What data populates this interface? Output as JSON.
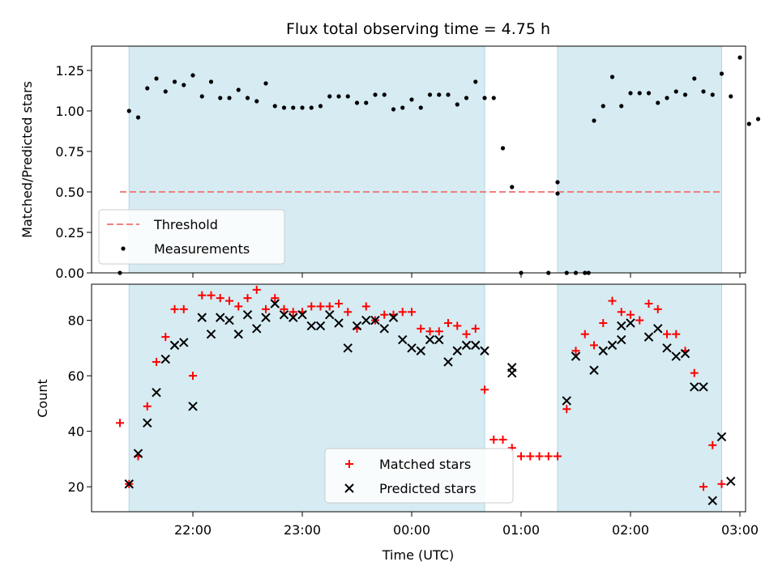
{
  "chart_data": {
    "type": "scatter",
    "title": "Flux total observing time = 4.75 h",
    "colors": {
      "span": "#add8e6",
      "threshold": "#f08080",
      "measurements": "#000000",
      "matched": "#ff0000",
      "predicted": "#000000"
    },
    "shaded_intervals": [
      [
        "21:25",
        "00:40"
      ],
      [
        "01:20",
        "02:50"
      ]
    ],
    "x_ticks": [
      "22:00",
      "23:00",
      "00:00",
      "01:00",
      "02:00",
      "03:00"
    ],
    "xlabel": "Time (UTC)",
    "top": {
      "ylabel": "Matched/Predicted stars",
      "ylim": [
        0,
        1.4
      ],
      "y_ticks": [
        "0.00",
        "0.25",
        "0.50",
        "0.75",
        "1.00",
        "1.25"
      ],
      "threshold": {
        "name": "Threshold",
        "y": 0.5,
        "x_range": [
          "21:20",
          "02:50"
        ]
      },
      "legend": {
        "placement": "lower-left",
        "entries": [
          "Threshold",
          "Measurements"
        ]
      },
      "series": [
        {
          "name": "Measurements",
          "marker": "dot",
          "points": [
            [
              "21:20",
              0.0
            ],
            [
              "21:25",
              1.0
            ],
            [
              "21:30",
              0.96
            ],
            [
              "21:35",
              1.14
            ],
            [
              "21:40",
              1.2
            ],
            [
              "21:45",
              1.12
            ],
            [
              "21:50",
              1.18
            ],
            [
              "21:55",
              1.16
            ],
            [
              "22:00",
              1.22
            ],
            [
              "22:05",
              1.09
            ],
            [
              "22:10",
              1.18
            ],
            [
              "22:15",
              1.08
            ],
            [
              "22:20",
              1.08
            ],
            [
              "22:25",
              1.13
            ],
            [
              "22:30",
              1.08
            ],
            [
              "22:35",
              1.06
            ],
            [
              "22:40",
              1.17
            ],
            [
              "22:45",
              1.03
            ],
            [
              "22:50",
              1.02
            ],
            [
              "22:55",
              1.02
            ],
            [
              "23:00",
              1.02
            ],
            [
              "23:05",
              1.02
            ],
            [
              "23:10",
              1.03
            ],
            [
              "23:15",
              1.09
            ],
            [
              "23:20",
              1.09
            ],
            [
              "23:25",
              1.09
            ],
            [
              "23:30",
              1.05
            ],
            [
              "23:35",
              1.05
            ],
            [
              "23:40",
              1.1
            ],
            [
              "23:45",
              1.1
            ],
            [
              "23:50",
              1.01
            ],
            [
              "23:55",
              1.02
            ],
            [
              "00:00",
              1.07
            ],
            [
              "00:05",
              1.02
            ],
            [
              "00:10",
              1.1
            ],
            [
              "00:15",
              1.1
            ],
            [
              "00:20",
              1.1
            ],
            [
              "00:25",
              1.04
            ],
            [
              "00:30",
              1.08
            ],
            [
              "00:35",
              1.18
            ],
            [
              "00:40",
              1.08
            ],
            [
              "00:45",
              1.08
            ],
            [
              "00:50",
              0.77
            ],
            [
              "00:55",
              0.53
            ],
            [
              "01:00",
              0.0
            ],
            [
              "01:15",
              0.0
            ],
            [
              "01:20",
              0.56
            ],
            [
              "01:20",
              0.49
            ],
            [
              "01:25",
              0.0
            ],
            [
              "01:30",
              0.0
            ],
            [
              "01:35",
              0.0
            ],
            [
              "01:37",
              0.0
            ],
            [
              "01:40",
              0.94
            ],
            [
              "01:45",
              1.03
            ],
            [
              "01:50",
              1.21
            ],
            [
              "01:55",
              1.03
            ],
            [
              "02:00",
              1.11
            ],
            [
              "02:05",
              1.11
            ],
            [
              "02:10",
              1.11
            ],
            [
              "02:15",
              1.05
            ],
            [
              "02:20",
              1.08
            ],
            [
              "02:25",
              1.12
            ],
            [
              "02:30",
              1.1
            ],
            [
              "02:35",
              1.2
            ],
            [
              "02:40",
              1.12
            ],
            [
              "02:45",
              1.1
            ],
            [
              "02:50",
              1.23
            ],
            [
              "02:55",
              1.09
            ],
            [
              "03:00",
              1.33
            ],
            [
              "03:05",
              0.92
            ],
            [
              "03:10",
              0.95
            ]
          ]
        }
      ]
    },
    "bottom": {
      "ylabel": "Count",
      "ylim": [
        11,
        93
      ],
      "y_ticks": [
        "20",
        "40",
        "60",
        "80"
      ],
      "legend": {
        "placement": "lower-center",
        "entries": [
          "Matched stars",
          "Predicted stars"
        ]
      },
      "series": [
        {
          "name": "Matched stars",
          "marker": "plus",
          "points": [
            [
              "21:20",
              43
            ],
            [
              "21:25",
              21
            ],
            [
              "21:30",
              31
            ],
            [
              "21:35",
              49
            ],
            [
              "21:40",
              65
            ],
            [
              "21:45",
              74
            ],
            [
              "21:50",
              84
            ],
            [
              "21:55",
              84
            ],
            [
              "22:00",
              60
            ],
            [
              "22:05",
              89
            ],
            [
              "22:10",
              89
            ],
            [
              "22:15",
              88
            ],
            [
              "22:20",
              87
            ],
            [
              "22:25",
              85
            ],
            [
              "22:30",
              88
            ],
            [
              "22:35",
              91
            ],
            [
              "22:40",
              84
            ],
            [
              "22:45",
              88
            ],
            [
              "22:50",
              84
            ],
            [
              "22:55",
              83
            ],
            [
              "23:00",
              83
            ],
            [
              "23:05",
              85
            ],
            [
              "23:10",
              85
            ],
            [
              "23:15",
              85
            ],
            [
              "23:20",
              86
            ],
            [
              "23:25",
              83
            ],
            [
              "23:30",
              77
            ],
            [
              "23:35",
              85
            ],
            [
              "23:40",
              80
            ],
            [
              "23:45",
              82
            ],
            [
              "23:50",
              82
            ],
            [
              "23:55",
              83
            ],
            [
              "00:00",
              83
            ],
            [
              "00:05",
              77
            ],
            [
              "00:10",
              76
            ],
            [
              "00:15",
              76
            ],
            [
              "00:20",
              79
            ],
            [
              "00:25",
              78
            ],
            [
              "00:30",
              75
            ],
            [
              "00:35",
              77
            ],
            [
              "00:40",
              55
            ],
            [
              "00:45",
              37
            ],
            [
              "00:50",
              37
            ],
            [
              "00:55",
              34
            ],
            [
              "01:00",
              31
            ],
            [
              "01:05",
              31
            ],
            [
              "01:10",
              31
            ],
            [
              "01:15",
              31
            ],
            [
              "01:20",
              31
            ],
            [
              "01:25",
              48
            ],
            [
              "01:30",
              69
            ],
            [
              "01:35",
              75
            ],
            [
              "01:40",
              71
            ],
            [
              "01:45",
              79
            ],
            [
              "01:50",
              87
            ],
            [
              "01:55",
              83
            ],
            [
              "02:00",
              82
            ],
            [
              "02:05",
              80
            ],
            [
              "02:10",
              86
            ],
            [
              "02:15",
              84
            ],
            [
              "02:20",
              75
            ],
            [
              "02:25",
              75
            ],
            [
              "02:30",
              69
            ],
            [
              "02:35",
              61
            ],
            [
              "02:40",
              20
            ],
            [
              "02:45",
              35
            ],
            [
              "02:50",
              21
            ]
          ]
        },
        {
          "name": "Predicted stars",
          "marker": "x",
          "points": [
            [
              "21:25",
              21
            ],
            [
              "21:30",
              32
            ],
            [
              "21:35",
              43
            ],
            [
              "21:40",
              54
            ],
            [
              "21:45",
              66
            ],
            [
              "21:50",
              71
            ],
            [
              "21:55",
              72
            ],
            [
              "22:00",
              49
            ],
            [
              "22:05",
              81
            ],
            [
              "22:10",
              75
            ],
            [
              "22:15",
              81
            ],
            [
              "22:20",
              80
            ],
            [
              "22:25",
              75
            ],
            [
              "22:30",
              82
            ],
            [
              "22:35",
              77
            ],
            [
              "22:40",
              81
            ],
            [
              "22:45",
              86
            ],
            [
              "22:50",
              82
            ],
            [
              "22:55",
              81
            ],
            [
              "23:00",
              82
            ],
            [
              "23:05",
              78
            ],
            [
              "23:10",
              78
            ],
            [
              "23:15",
              82
            ],
            [
              "23:20",
              79
            ],
            [
              "23:25",
              70
            ],
            [
              "23:30",
              78
            ],
            [
              "23:35",
              80
            ],
            [
              "23:40",
              80
            ],
            [
              "23:45",
              77
            ],
            [
              "23:50",
              81
            ],
            [
              "23:55",
              73
            ],
            [
              "00:00",
              70
            ],
            [
              "00:05",
              69
            ],
            [
              "00:10",
              73
            ],
            [
              "00:15",
              73
            ],
            [
              "00:20",
              65
            ],
            [
              "00:25",
              69
            ],
            [
              "00:30",
              71
            ],
            [
              "00:35",
              71
            ],
            [
              "00:40",
              69
            ],
            [
              "00:55",
              61
            ],
            [
              "00:55",
              63
            ],
            [
              "01:25",
              51
            ],
            [
              "01:30",
              67
            ],
            [
              "01:40",
              62
            ],
            [
              "01:45",
              69
            ],
            [
              "01:50",
              71
            ],
            [
              "01:55",
              78
            ],
            [
              "01:55",
              73
            ],
            [
              "02:00",
              79
            ],
            [
              "02:10",
              74
            ],
            [
              "02:15",
              77
            ],
            [
              "02:20",
              70
            ],
            [
              "02:25",
              67
            ],
            [
              "02:30",
              68
            ],
            [
              "02:35",
              56
            ],
            [
              "02:40",
              56
            ],
            [
              "02:45",
              15
            ],
            [
              "02:50",
              38
            ],
            [
              "02:55",
              22
            ]
          ]
        }
      ]
    }
  }
}
